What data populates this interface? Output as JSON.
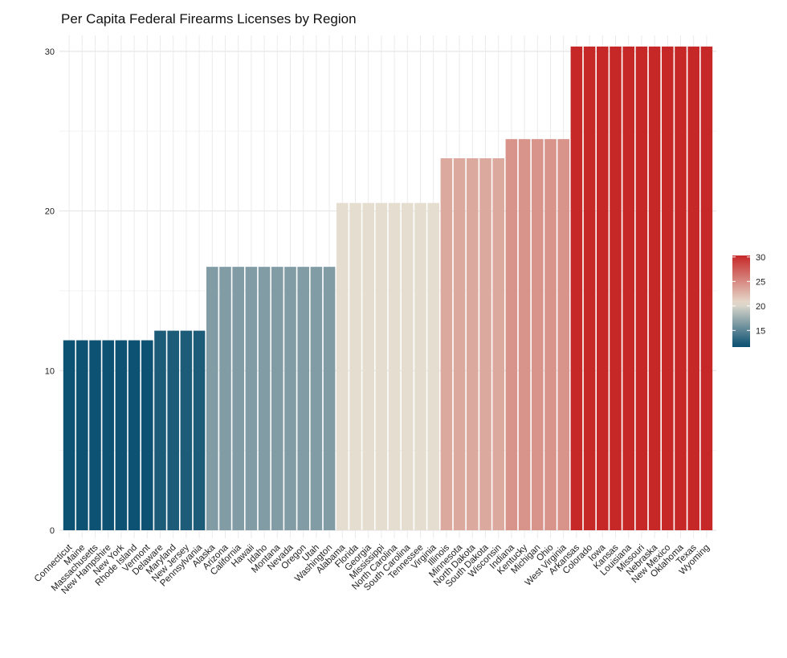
{
  "chart_data": {
    "type": "bar",
    "title": "Per Capita Federal Firearms Licenses by Region",
    "xlabel": "",
    "ylabel": "",
    "ylim": [
      0,
      31
    ],
    "yticks": [
      0,
      10,
      20,
      30
    ],
    "grid": true,
    "legend_position": "right",
    "legend_ticks": [
      15,
      20,
      25,
      30
    ],
    "color_scale": {
      "low": "#0d5273",
      "mid": "#e5ddcf",
      "high": "#c62828",
      "min": 11.9,
      "mid_value": 20.5,
      "max": 30.3
    },
    "categories": [
      "Connecticut",
      "Maine",
      "Massachusetts",
      "New Hampshire",
      "New York",
      "Rhode Island",
      "Vermont",
      "Delaware",
      "Maryland",
      "New Jersey",
      "Pennsylvania",
      "Alaska",
      "Arizona",
      "California",
      "Hawaii",
      "Idaho",
      "Montana",
      "Nevada",
      "Oregon",
      "Utah",
      "Washington",
      "Alabama",
      "Florida",
      "Georgia",
      "Mississippi",
      "North Carolina",
      "South Carolina",
      "Tennessee",
      "Virginia",
      "Illinois",
      "Minnesota",
      "North Dakota",
      "South Dakota",
      "Wisconsin",
      "Indiana",
      "Kentucky",
      "Michigan",
      "Ohio",
      "West Virginia",
      "Arkansas",
      "Colorado",
      "Iowa",
      "Kansas",
      "Louisiana",
      "Missouri",
      "Nebraska",
      "New Mexico",
      "Oklahoma",
      "Texas",
      "Wyoming"
    ],
    "values": [
      11.9,
      11.9,
      11.9,
      11.9,
      11.9,
      11.9,
      11.9,
      12.5,
      12.5,
      12.5,
      12.5,
      16.5,
      16.5,
      16.5,
      16.5,
      16.5,
      16.5,
      16.5,
      16.5,
      16.5,
      16.5,
      20.5,
      20.5,
      20.5,
      20.5,
      20.5,
      20.5,
      20.5,
      20.5,
      23.3,
      23.3,
      23.3,
      23.3,
      23.3,
      24.5,
      24.5,
      24.5,
      24.5,
      24.5,
      30.3,
      30.3,
      30.3,
      30.3,
      30.3,
      30.3,
      30.3,
      30.3,
      30.3,
      30.3,
      30.3
    ]
  }
}
